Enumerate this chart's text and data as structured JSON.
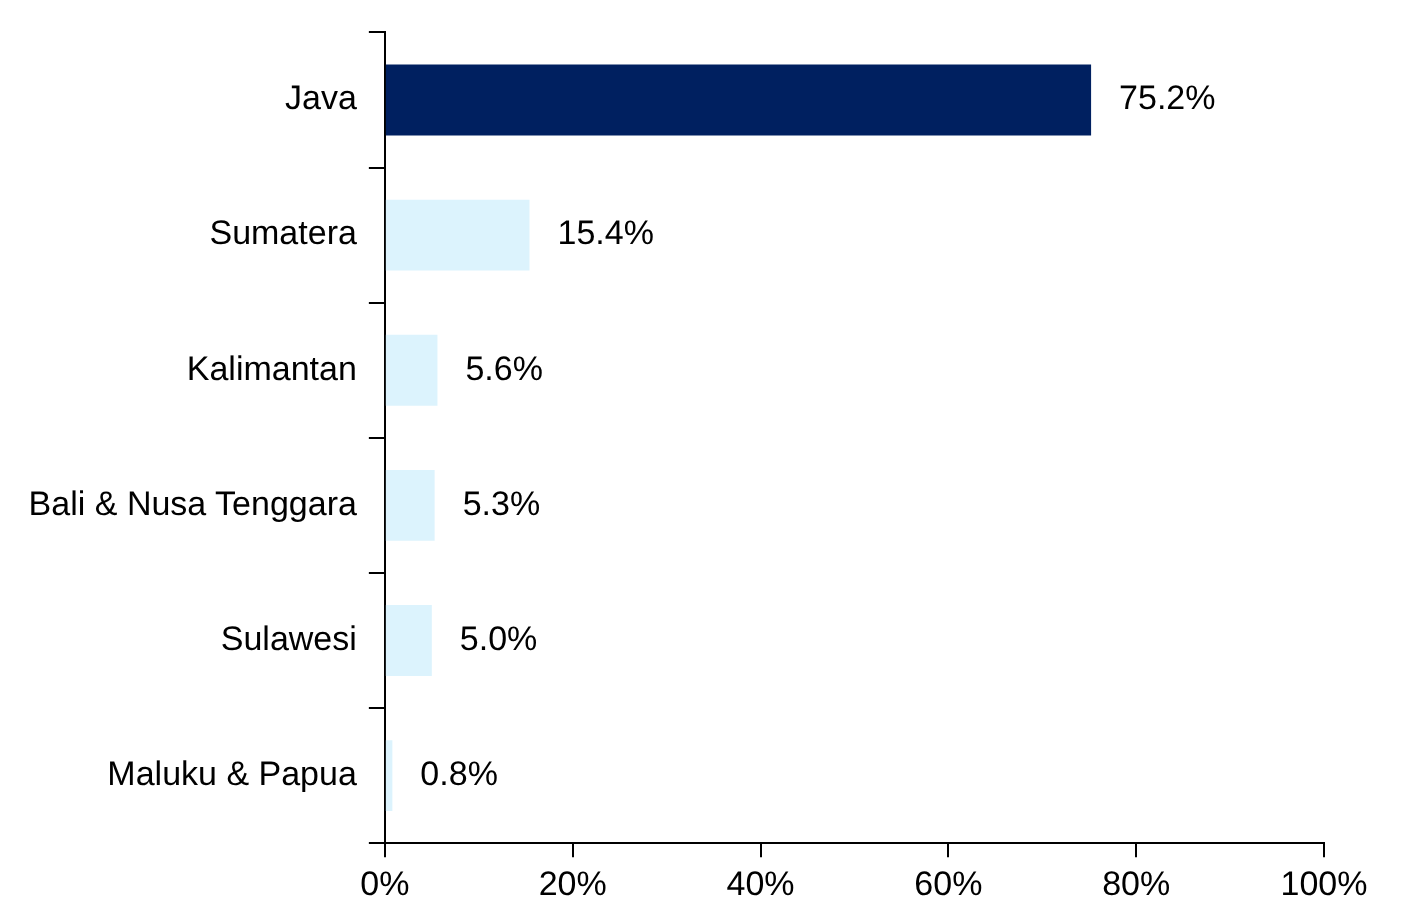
{
  "chart_data": {
    "type": "bar",
    "orientation": "horizontal",
    "categories": [
      "Java",
      "Sumatera",
      "Kalimantan",
      "Bali & Nusa Tenggara",
      "Sulawesi",
      "Maluku & Papua"
    ],
    "values": [
      75.2,
      15.4,
      5.6,
      5.3,
      5.0,
      0.8
    ],
    "value_labels": [
      "75.2%",
      "15.4%",
      "5.6%",
      "5.3%",
      "5.0%",
      "0.8%"
    ],
    "colors": [
      "#002060",
      "#dcf3fd",
      "#dcf3fd",
      "#dcf3fd",
      "#dcf3fd",
      "#dcf3fd"
    ],
    "xlim": [
      0,
      100
    ],
    "xticks": [
      {
        "value": 0,
        "label": "0%"
      },
      {
        "value": 20,
        "label": "20%"
      },
      {
        "value": 40,
        "label": "40%"
      },
      {
        "value": 60,
        "label": "60%"
      },
      {
        "value": 80,
        "label": "80%"
      },
      {
        "value": 100,
        "label": "100%"
      }
    ],
    "grid": false,
    "legend": false
  }
}
